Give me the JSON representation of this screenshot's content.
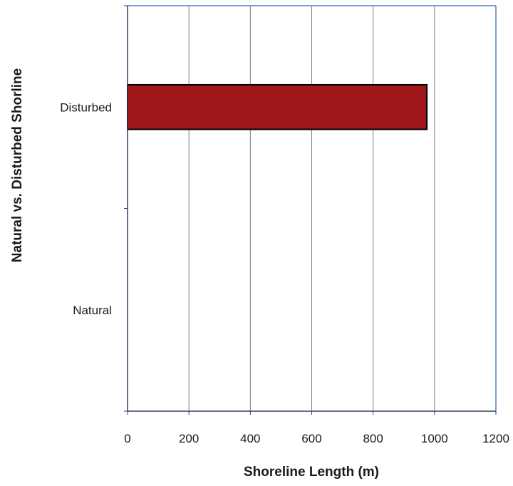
{
  "chart_data": {
    "type": "bar",
    "orientation": "horizontal",
    "categories": [
      "Natural",
      "Disturbed"
    ],
    "values": [
      0,
      975
    ],
    "xlabel": "Shoreline Length (m)",
    "ylabel": "Natural vs. Disturbed Shorline",
    "xlim": [
      0,
      1200
    ],
    "xticks": [
      "0",
      "200",
      "400",
      "600",
      "800",
      "1000",
      "1200"
    ],
    "grid": true,
    "legend": "none",
    "bar_color": "#a0171a",
    "bar_edge_color": "#000000",
    "gridline_color": "#7f7f7f",
    "plot_border_color": "#4f81bd"
  }
}
